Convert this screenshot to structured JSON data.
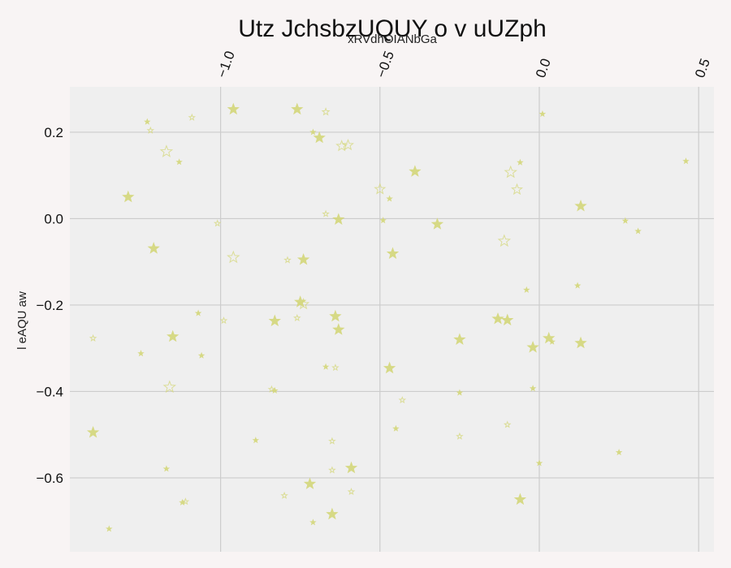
{
  "chart_data": {
    "type": "scatter",
    "title": "Utz JchsbzUQUY o v uUZph",
    "xlabel": "xRVdhOIANbGa",
    "ylabel": "l eAQU aw",
    "xlim": [
      -1.473,
      0.548
    ],
    "ylim": [
      -0.771,
      0.305
    ],
    "x_axis_position": "top",
    "x_ticks": [
      -1.0,
      -0.5,
      0.0,
      0.5
    ],
    "x_tick_labels": [
      "−1.0",
      "−0.5",
      "0.0",
      "0.5"
    ],
    "y_ticks": [
      0.2,
      0.0,
      -0.2,
      -0.4,
      -0.6
    ],
    "y_tick_labels": [
      "0.2",
      "0.0",
      "−0.2",
      "−0.4",
      "−0.6"
    ],
    "grid": true,
    "marker": "star",
    "color": "#d4d77a",
    "background": "#efefef",
    "points": [
      {
        "x": -1.23,
        "y": 0.224,
        "s": 5,
        "f": true
      },
      {
        "x": -1.22,
        "y": 0.204,
        "s": 5,
        "f": false
      },
      {
        "x": -0.96,
        "y": 0.253,
        "s": 10,
        "f": true
      },
      {
        "x": -1.09,
        "y": 0.234,
        "s": 5,
        "f": false
      },
      {
        "x": -0.76,
        "y": 0.253,
        "s": 10,
        "f": true
      },
      {
        "x": -0.67,
        "y": 0.247,
        "s": 6,
        "f": false
      },
      {
        "x": -0.71,
        "y": 0.2,
        "s": 5,
        "f": true
      },
      {
        "x": -0.69,
        "y": 0.187,
        "s": 10,
        "f": true
      },
      {
        "x": -1.17,
        "y": 0.155,
        "s": 10,
        "f": false
      },
      {
        "x": -1.13,
        "y": 0.131,
        "s": 5,
        "f": true
      },
      {
        "x": -0.62,
        "y": 0.168,
        "s": 9,
        "f": false
      },
      {
        "x": -0.6,
        "y": 0.17,
        "s": 9,
        "f": false
      },
      {
        "x": -0.39,
        "y": 0.109,
        "s": 10,
        "f": true
      },
      {
        "x": -0.09,
        "y": 0.107,
        "s": 10,
        "f": false
      },
      {
        "x": -0.06,
        "y": 0.13,
        "s": 5,
        "f": true
      },
      {
        "x": 0.01,
        "y": 0.242,
        "s": 5,
        "f": true
      },
      {
        "x": 0.46,
        "y": 0.133,
        "s": 5,
        "f": true
      },
      {
        "x": -0.5,
        "y": 0.068,
        "s": 9,
        "f": false
      },
      {
        "x": -0.07,
        "y": 0.067,
        "s": 9,
        "f": false
      },
      {
        "x": -1.29,
        "y": 0.05,
        "s": 10,
        "f": true
      },
      {
        "x": -0.47,
        "y": 0.046,
        "s": 5,
        "f": true
      },
      {
        "x": 0.13,
        "y": 0.029,
        "s": 10,
        "f": true
      },
      {
        "x": -0.67,
        "y": 0.011,
        "s": 5,
        "f": false
      },
      {
        "x": -0.63,
        "y": -0.002,
        "s": 10,
        "f": true
      },
      {
        "x": -0.49,
        "y": -0.004,
        "s": 5,
        "f": true
      },
      {
        "x": -0.32,
        "y": -0.013,
        "s": 10,
        "f": true
      },
      {
        "x": -1.01,
        "y": -0.011,
        "s": 5,
        "f": false
      },
      {
        "x": 0.27,
        "y": -0.005,
        "s": 5,
        "f": true
      },
      {
        "x": 0.31,
        "y": -0.029,
        "s": 5,
        "f": true
      },
      {
        "x": -0.11,
        "y": -0.052,
        "s": 10,
        "f": false
      },
      {
        "x": -1.21,
        "y": -0.069,
        "s": 10,
        "f": true
      },
      {
        "x": -0.46,
        "y": -0.081,
        "s": 10,
        "f": true
      },
      {
        "x": -0.96,
        "y": -0.09,
        "s": 10,
        "f": false
      },
      {
        "x": -0.79,
        "y": -0.096,
        "s": 5,
        "f": false
      },
      {
        "x": -0.74,
        "y": -0.095,
        "s": 10,
        "f": true
      },
      {
        "x": -0.04,
        "y": -0.165,
        "s": 5,
        "f": true
      },
      {
        "x": 0.12,
        "y": -0.155,
        "s": 5,
        "f": true
      },
      {
        "x": -0.75,
        "y": -0.193,
        "s": 10,
        "f": true
      },
      {
        "x": -0.74,
        "y": -0.198,
        "s": 9,
        "f": false
      },
      {
        "x": -1.07,
        "y": -0.219,
        "s": 5,
        "f": true
      },
      {
        "x": -0.99,
        "y": -0.236,
        "s": 5,
        "f": false
      },
      {
        "x": -0.83,
        "y": -0.237,
        "s": 10,
        "f": true
      },
      {
        "x": -0.76,
        "y": -0.23,
        "s": 5,
        "f": false
      },
      {
        "x": -0.64,
        "y": -0.226,
        "s": 10,
        "f": true
      },
      {
        "x": -0.63,
        "y": -0.257,
        "s": 10,
        "f": true
      },
      {
        "x": -0.13,
        "y": -0.232,
        "s": 10,
        "f": true
      },
      {
        "x": -0.1,
        "y": -0.235,
        "s": 10,
        "f": true
      },
      {
        "x": -1.4,
        "y": -0.277,
        "s": 5,
        "f": false
      },
      {
        "x": -1.15,
        "y": -0.273,
        "s": 10,
        "f": true
      },
      {
        "x": -0.25,
        "y": -0.28,
        "s": 10,
        "f": true
      },
      {
        "x": 0.03,
        "y": -0.277,
        "s": 10,
        "f": true
      },
      {
        "x": 0.04,
        "y": -0.285,
        "s": 5,
        "f": true
      },
      {
        "x": 0.13,
        "y": -0.288,
        "s": 10,
        "f": true
      },
      {
        "x": -0.02,
        "y": -0.298,
        "s": 10,
        "f": true
      },
      {
        "x": -1.25,
        "y": -0.312,
        "s": 5,
        "f": true
      },
      {
        "x": -1.06,
        "y": -0.317,
        "s": 5,
        "f": true
      },
      {
        "x": -0.67,
        "y": -0.343,
        "s": 5,
        "f": true
      },
      {
        "x": -0.64,
        "y": -0.345,
        "s": 5,
        "f": false
      },
      {
        "x": -0.47,
        "y": -0.346,
        "s": 10,
        "f": true
      },
      {
        "x": -1.16,
        "y": -0.39,
        "s": 10,
        "f": false
      },
      {
        "x": -0.84,
        "y": -0.395,
        "s": 5,
        "f": false
      },
      {
        "x": -0.83,
        "y": -0.398,
        "s": 5,
        "f": true
      },
      {
        "x": -0.02,
        "y": -0.393,
        "s": 5,
        "f": true
      },
      {
        "x": -0.25,
        "y": -0.403,
        "s": 5,
        "f": true
      },
      {
        "x": -0.43,
        "y": -0.42,
        "s": 5,
        "f": false
      },
      {
        "x": -0.45,
        "y": -0.486,
        "s": 5,
        "f": true
      },
      {
        "x": -0.1,
        "y": -0.477,
        "s": 5,
        "f": false
      },
      {
        "x": -1.4,
        "y": -0.495,
        "s": 10,
        "f": true
      },
      {
        "x": -0.89,
        "y": -0.513,
        "s": 5,
        "f": true
      },
      {
        "x": -0.65,
        "y": -0.515,
        "s": 5,
        "f": false
      },
      {
        "x": -0.25,
        "y": -0.504,
        "s": 5,
        "f": false
      },
      {
        "x": 0.25,
        "y": -0.541,
        "s": 5,
        "f": true
      },
      {
        "x": 0.0,
        "y": -0.566,
        "s": 5,
        "f": true
      },
      {
        "x": -1.17,
        "y": -0.579,
        "s": 5,
        "f": true
      },
      {
        "x": -0.65,
        "y": -0.582,
        "s": 5,
        "f": false
      },
      {
        "x": -0.59,
        "y": -0.577,
        "s": 10,
        "f": true
      },
      {
        "x": -0.72,
        "y": -0.614,
        "s": 10,
        "f": true
      },
      {
        "x": -0.8,
        "y": -0.641,
        "s": 5,
        "f": false
      },
      {
        "x": -0.59,
        "y": -0.632,
        "s": 5,
        "f": false
      },
      {
        "x": -1.12,
        "y": -0.657,
        "s": 5,
        "f": true
      },
      {
        "x": -1.11,
        "y": -0.655,
        "s": 5,
        "f": false
      },
      {
        "x": -0.06,
        "y": -0.65,
        "s": 10,
        "f": true
      },
      {
        "x": -0.65,
        "y": -0.684,
        "s": 10,
        "f": true
      },
      {
        "x": -0.71,
        "y": -0.703,
        "s": 5,
        "f": true
      },
      {
        "x": -1.35,
        "y": -0.718,
        "s": 5,
        "f": true
      }
    ]
  }
}
